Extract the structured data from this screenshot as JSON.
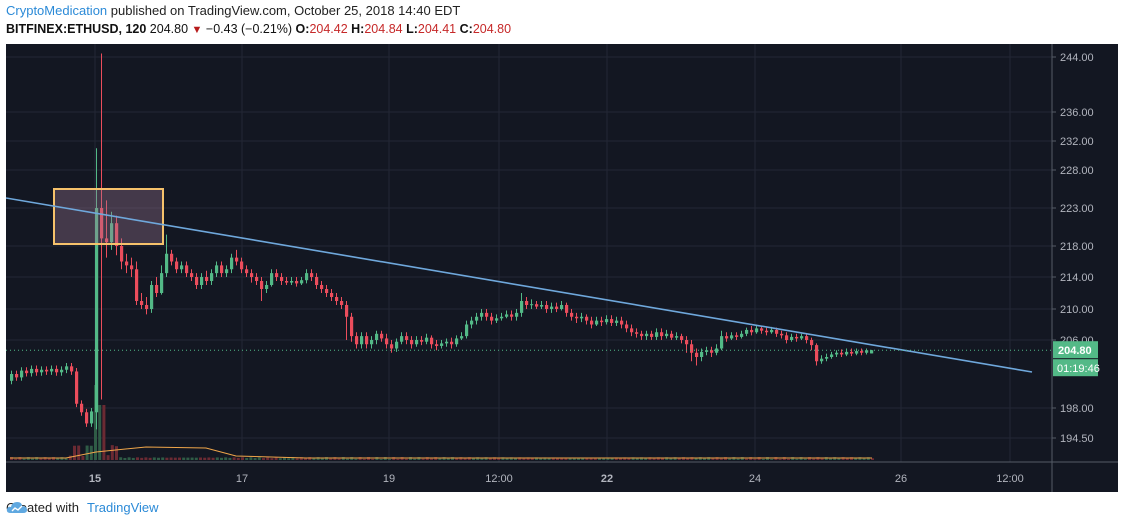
{
  "header": {
    "author": "CryptoMedication",
    "published_text": "published on TradingView.com, October 25, 2018 14:40 EDT",
    "symbol": "BITFINEX:ETHUSD, 120",
    "last_price": "204.80",
    "change": "−0.43 (−0.21%)",
    "open_label": "O:",
    "open": "204.42",
    "high_label": "H:",
    "high": "204.84",
    "low_label": "L:",
    "low": "204.41",
    "close_label": "C:",
    "close": "204.80"
  },
  "price_axis": {
    "labels": [
      "244.00",
      "236.00",
      "232.00",
      "228.00",
      "223.00",
      "218.00",
      "214.00",
      "210.00",
      "206.00",
      "198.00",
      "194.50"
    ],
    "current_price_tag": "204.80",
    "countdown_tag": "01:19:46"
  },
  "time_axis": {
    "labels": [
      "15",
      "17",
      "19",
      "12:00",
      "22",
      "24",
      "26",
      "12:00"
    ],
    "bold": [
      true,
      false,
      false,
      false,
      true,
      false,
      false,
      false
    ]
  },
  "footer": {
    "created_with": "Created with",
    "brand": "TradingView"
  },
  "colors": {
    "background": "#131722",
    "up": "#53b987",
    "down": "#eb4d5c",
    "trendline": "#6fa8dc",
    "highlight_box": "#f6c26b",
    "price_tag": "#53b987"
  },
  "chart_data": {
    "type": "candlestick",
    "symbol": "BITFINEX:ETHUSD",
    "interval": "120",
    "current_price": 204.8,
    "annotations": [
      {
        "type": "descending trendline"
      },
      {
        "type": "highlight box"
      }
    ]
  }
}
